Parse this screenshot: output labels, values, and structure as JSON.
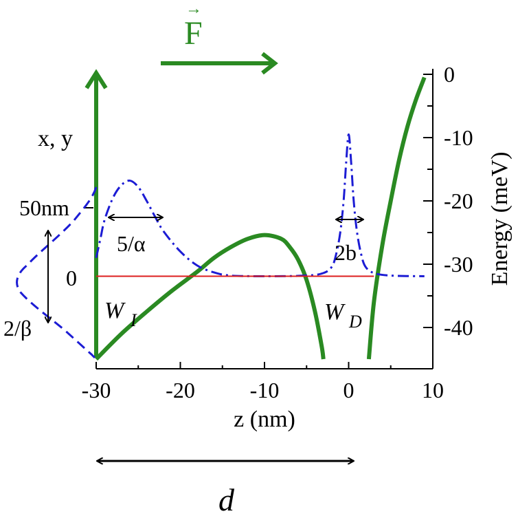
{
  "colors": {
    "potential": "#2a8a22",
    "wavefunction": "#1c1cd4",
    "energy_level": "#dd1f1f",
    "annotation": "#000000"
  },
  "labels": {
    "force_symbol": "F",
    "force_vector_arrow": "→",
    "xy_axis_label": "x, y",
    "xy_tick_50": "50nm",
    "xy_tick_0": "0",
    "width_beta": "2/β",
    "width_alpha": "5/α",
    "width_b": "2b",
    "wi_main": "W",
    "wi_sub": "I",
    "wd_main": "W",
    "wd_sub": "D",
    "distance": "d"
  },
  "chart_data": {
    "type": "line",
    "xlabel": "z (nm)",
    "ylabel": "Energy (meV)",
    "xlim": [
      -30,
      10
    ],
    "ylim": [
      -45,
      0
    ],
    "x_ticks": [
      "-30",
      "-20",
      "-10",
      "0",
      "10"
    ],
    "x_tick_values": [
      -30,
      -20,
      -10,
      0,
      10
    ],
    "y_ticks": [
      "0",
      "-10",
      "-20",
      "-30",
      "-40"
    ],
    "y_tick_values": [
      0,
      -10,
      -20,
      -30,
      -40
    ],
    "series": [
      {
        "kind": "potential",
        "color": "#2a8a22",
        "segments": [
          [
            [
              -30,
              -45
            ],
            [
              -27,
              -41
            ],
            [
              -24,
              -37.5
            ],
            [
              -21,
              -34.2
            ],
            [
              -18,
              -31.2
            ],
            [
              -16,
              -29
            ],
            [
              -14,
              -27.3
            ],
            [
              -12,
              -26
            ],
            [
              -10,
              -25.4
            ],
            [
              -8,
              -26
            ],
            [
              -7,
              -27.3
            ],
            [
              -6,
              -29.3
            ],
            [
              -5,
              -32.5
            ],
            [
              -4,
              -37.5
            ],
            [
              -3.2,
              -43
            ],
            [
              -3,
              -45
            ]
          ],
          [
            [
              2.4,
              -45
            ],
            [
              3,
              -36
            ],
            [
              4,
              -27
            ],
            [
              5,
              -20
            ],
            [
              6,
              -13.5
            ],
            [
              7,
              -8.2
            ],
            [
              8,
              -4
            ],
            [
              9,
              -0.5
            ]
          ]
        ]
      },
      {
        "kind": "wavefunction",
        "color": "#1c1cd4",
        "points": [
          [
            -30,
            -29
          ],
          [
            -29.5,
            -26
          ],
          [
            -29,
            -23
          ],
          [
            -28,
            -19.5
          ],
          [
            -27,
            -17.5
          ],
          [
            -26,
            -16.8
          ],
          [
            -25,
            -17.8
          ],
          [
            -24,
            -20
          ],
          [
            -23,
            -22.5
          ],
          [
            -22,
            -24.8
          ],
          [
            -20,
            -28
          ],
          [
            -18,
            -30.2
          ],
          [
            -16,
            -31.3
          ],
          [
            -14,
            -31.8
          ],
          [
            -10,
            -31.9
          ],
          [
            -5,
            -31.8
          ],
          [
            -3,
            -31.4
          ],
          [
            -2,
            -30.4
          ],
          [
            -1.5,
            -28.5
          ],
          [
            -1,
            -25
          ],
          [
            -0.6,
            -20
          ],
          [
            -0.3,
            -14
          ],
          [
            0,
            -9.5
          ],
          [
            0.3,
            -14
          ],
          [
            0.6,
            -20
          ],
          [
            1,
            -25
          ],
          [
            1.5,
            -28.5
          ],
          [
            2,
            -30.4
          ],
          [
            3,
            -31.4
          ],
          [
            5,
            -31.8
          ],
          [
            9,
            -31.9
          ]
        ]
      },
      {
        "kind": "energy_level",
        "color": "#dd1f1f",
        "points": [
          [
            -30,
            -31.9
          ],
          [
            3,
            -31.9
          ]
        ]
      }
    ]
  }
}
